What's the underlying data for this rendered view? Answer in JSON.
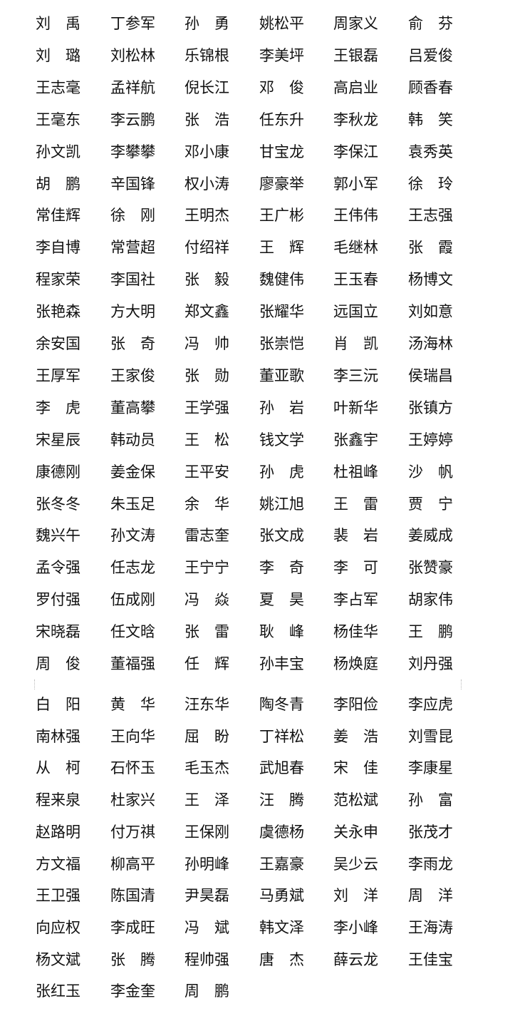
{
  "sections": [
    {
      "rows": [
        [
          "刘　禹",
          "丁参军",
          "孙　勇",
          "姚松平",
          "周家义",
          "俞　芬"
        ],
        [
          "刘　璐",
          "刘松林",
          "乐锦根",
          "李美坪",
          "王银磊",
          "吕爱俊"
        ],
        [
          "王志毫",
          "孟祥航",
          "倪长江",
          "邓　俊",
          "高启业",
          "顾香春"
        ],
        [
          "王毫东",
          "李云鹏",
          "张　浩",
          "任东升",
          "李秋龙",
          "韩　笑"
        ],
        [
          "孙文凯",
          "李攀攀",
          "邓小康",
          "甘宝龙",
          "李保江",
          "袁秀英"
        ],
        [
          "胡　鹏",
          "辛国锋",
          "权小涛",
          "廖豪举",
          "郭小军",
          "徐　玲"
        ],
        [
          "常佳辉",
          "徐　刚",
          "王明杰",
          "王广彬",
          "王伟伟",
          "王志强"
        ],
        [
          "李自博",
          "常营超",
          "付绍祥",
          "王　辉",
          "毛继林",
          "张　霞"
        ],
        [
          "程家荣",
          "李国社",
          "张　毅",
          "魏健伟",
          "王玉春",
          "杨博文"
        ],
        [
          "张艳森",
          "方大明",
          "郑文鑫",
          "张耀华",
          "远国立",
          "刘如意"
        ],
        [
          "余安国",
          "张　奇",
          "冯　帅",
          "张崇恺",
          "肖　凯",
          "汤海林"
        ],
        [
          "王厚军",
          "王家俊",
          "张　勋",
          "董亚歌",
          "李三沅",
          "侯瑞昌"
        ],
        [
          "李　虎",
          "董高攀",
          "王学强",
          "孙　岩",
          "叶新华",
          "张镇方"
        ],
        [
          "宋星辰",
          "韩动员",
          "王　松",
          "钱文学",
          "张鑫宇",
          "王婷婷"
        ],
        [
          "康德刚",
          "姜金保",
          "王平安",
          "孙　虎",
          "杜祖峰",
          "沙　帆"
        ],
        [
          "张冬冬",
          "朱玉足",
          "余　华",
          "姚江旭",
          "王　雷",
          "贾　宁"
        ],
        [
          "魏兴午",
          "孙文涛",
          "雷志奎",
          "张文成",
          "裴　岩",
          "姜威成"
        ],
        [
          "孟令强",
          "任志龙",
          "王宁宁",
          "李　奇",
          "李　可",
          "张赞豪"
        ],
        [
          "罗付强",
          "伍成刚",
          "冯　焱",
          "夏　昊",
          "李占军",
          "胡家伟"
        ],
        [
          "宋晓磊",
          "任文晗",
          "张　雷",
          "耿　峰",
          "杨佳华",
          "王　鹏"
        ],
        [
          "周　俊",
          "董福强",
          "任　辉",
          "孙丰宝",
          "杨焕庭",
          "刘丹强"
        ]
      ]
    },
    {
      "rows": [
        [
          "白　阳",
          "黄　华",
          "汪东华",
          "陶冬青",
          "李阳俭",
          "李应虎"
        ],
        [
          "南林强",
          "王向华",
          "屈　盼",
          "丁祥松",
          "姜　浩",
          "刘雪昆"
        ],
        [
          "从　柯",
          "石怀玉",
          "毛玉杰",
          "武旭春",
          "宋　佳",
          "李康星"
        ],
        [
          "程来泉",
          "杜家兴",
          "王　泽",
          "汪　腾",
          "范松斌",
          "孙　富"
        ],
        [
          "赵路明",
          "付万祺",
          "王保刚",
          "虞德杨",
          "关永申",
          "张茂才"
        ],
        [
          "方文福",
          "柳高平",
          "孙明峰",
          "王嘉豪",
          "吴少云",
          "李雨龙"
        ],
        [
          "王卫强",
          "陈国清",
          "尹昊磊",
          "马勇斌",
          "刘　洋",
          "周　洋"
        ],
        [
          "向应权",
          "李成旺",
          "冯　斌",
          "韩文泽",
          "李小峰",
          "王海涛"
        ],
        [
          "杨文斌",
          "张　腾",
          "程帅强",
          "唐　杰",
          "薛云龙",
          "王佳宝"
        ],
        [
          "张红玉",
          "李金奎",
          "周　鹏"
        ]
      ]
    }
  ]
}
